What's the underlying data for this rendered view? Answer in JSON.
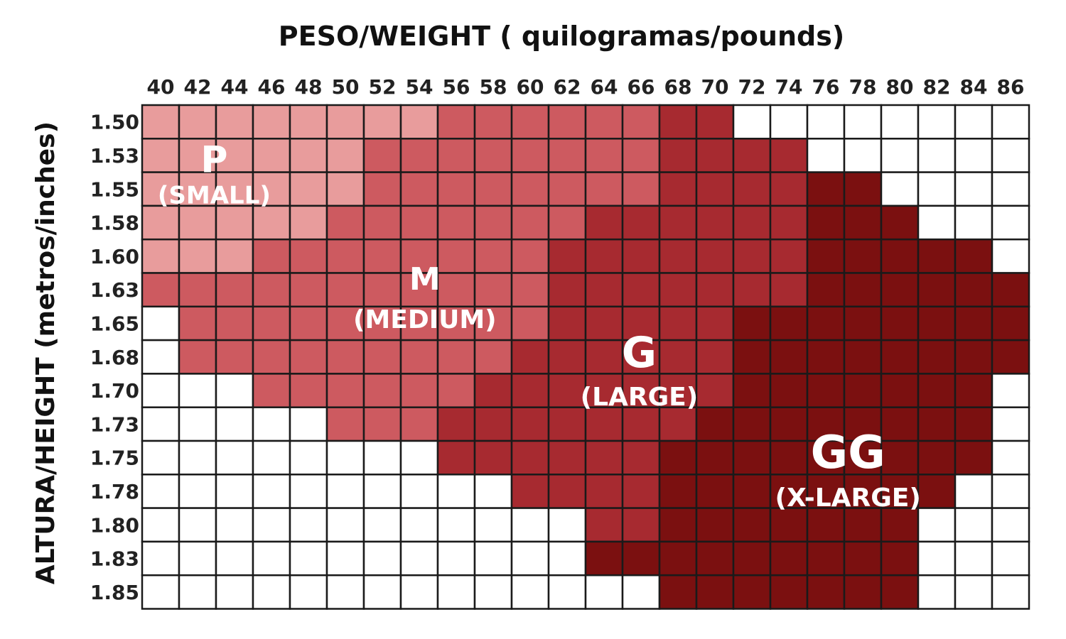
{
  "chart_data": {
    "type": "heatmap",
    "title": "PESO/WEIGHT ( quilogramas/pounds)",
    "xlabel": "PESO/WEIGHT ( quilogramas/pounds)",
    "ylabel": "ALTURA/HEIGHT (metros/inches)",
    "x_ticks": [
      "40",
      "42",
      "44",
      "46",
      "48",
      "50",
      "52",
      "54",
      "56",
      "58",
      "60",
      "62",
      "64",
      "66",
      "68",
      "70",
      "72",
      "74",
      "76",
      "78",
      "80",
      "82",
      "84",
      "86"
    ],
    "y_ticks": [
      "1.50",
      "1.53",
      "1.55",
      "1.58",
      "1.60",
      "1.63",
      "1.65",
      "1.68",
      "1.70",
      "1.73",
      "1.75",
      "1.78",
      "1.80",
      "1.83",
      "1.85"
    ],
    "legend_codes": {
      "0": "none",
      "1": "P",
      "2": "M",
      "3": "G",
      "4": "GG"
    },
    "size_colors": {
      "0": "#ffffff",
      "1": "#e89c9c",
      "2": "#cd5a60",
      "3": "#a72a30",
      "4": "#7b1010"
    },
    "grid": [
      [
        1,
        1,
        1,
        1,
        1,
        1,
        1,
        1,
        2,
        2,
        2,
        2,
        2,
        2,
        3,
        3,
        0,
        0,
        0,
        0,
        0,
        0,
        0,
        0
      ],
      [
        1,
        1,
        1,
        1,
        1,
        1,
        2,
        2,
        2,
        2,
        2,
        2,
        2,
        2,
        3,
        3,
        3,
        3,
        0,
        0,
        0,
        0,
        0,
        0
      ],
      [
        1,
        1,
        1,
        1,
        1,
        1,
        2,
        2,
        2,
        2,
        2,
        2,
        2,
        2,
        3,
        3,
        3,
        3,
        4,
        4,
        0,
        0,
        0,
        0
      ],
      [
        1,
        1,
        1,
        1,
        1,
        2,
        2,
        2,
        2,
        2,
        2,
        2,
        3,
        3,
        3,
        3,
        3,
        3,
        4,
        4,
        4,
        0,
        0,
        0
      ],
      [
        1,
        1,
        1,
        2,
        2,
        2,
        2,
        2,
        2,
        2,
        2,
        3,
        3,
        3,
        3,
        3,
        3,
        3,
        4,
        4,
        4,
        4,
        4,
        0
      ],
      [
        2,
        2,
        2,
        2,
        2,
        2,
        2,
        2,
        2,
        2,
        2,
        3,
        3,
        3,
        3,
        3,
        3,
        3,
        4,
        4,
        4,
        4,
        4,
        4
      ],
      [
        0,
        2,
        2,
        2,
        2,
        2,
        2,
        2,
        2,
        2,
        2,
        3,
        3,
        3,
        3,
        3,
        4,
        4,
        4,
        4,
        4,
        4,
        4,
        4
      ],
      [
        0,
        2,
        2,
        2,
        2,
        2,
        2,
        2,
        2,
        2,
        3,
        3,
        3,
        3,
        3,
        3,
        4,
        4,
        4,
        4,
        4,
        4,
        4,
        4
      ],
      [
        0,
        0,
        0,
        2,
        2,
        2,
        2,
        2,
        2,
        3,
        3,
        3,
        3,
        3,
        3,
        3,
        4,
        4,
        4,
        4,
        4,
        4,
        4,
        0
      ],
      [
        0,
        0,
        0,
        0,
        0,
        2,
        2,
        2,
        3,
        3,
        3,
        3,
        3,
        3,
        3,
        4,
        4,
        4,
        4,
        4,
        4,
        4,
        4,
        0
      ],
      [
        0,
        0,
        0,
        0,
        0,
        0,
        0,
        0,
        3,
        3,
        3,
        3,
        3,
        3,
        4,
        4,
        4,
        4,
        4,
        4,
        4,
        4,
        4,
        0
      ],
      [
        0,
        0,
        0,
        0,
        0,
        0,
        0,
        0,
        0,
        0,
        3,
        3,
        3,
        3,
        4,
        4,
        4,
        4,
        4,
        4,
        4,
        4,
        0,
        0
      ],
      [
        0,
        0,
        0,
        0,
        0,
        0,
        0,
        0,
        0,
        0,
        0,
        0,
        3,
        3,
        4,
        4,
        4,
        4,
        4,
        4,
        4,
        0,
        0,
        0
      ],
      [
        0,
        0,
        0,
        0,
        0,
        0,
        0,
        0,
        0,
        0,
        0,
        0,
        4,
        4,
        4,
        4,
        4,
        4,
        4,
        4,
        4,
        0,
        0,
        0
      ],
      [
        0,
        0,
        0,
        0,
        0,
        0,
        0,
        0,
        0,
        0,
        0,
        0,
        0,
        0,
        4,
        4,
        4,
        4,
        4,
        4,
        4,
        0,
        0,
        0
      ]
    ],
    "zones": [
      {
        "code": "P",
        "label": "(SMALL)",
        "col": 1.95,
        "row": 2.0
      },
      {
        "code": "M",
        "label": "(MEDIUM)",
        "col": 7.65,
        "row": 5.5
      },
      {
        "code": "G",
        "label": "(LARGE)",
        "col": 13.45,
        "row": 7.8
      },
      {
        "code": "GG",
        "label": "(X-LARGE)",
        "col": 19.1,
        "row": 10.8
      }
    ]
  }
}
